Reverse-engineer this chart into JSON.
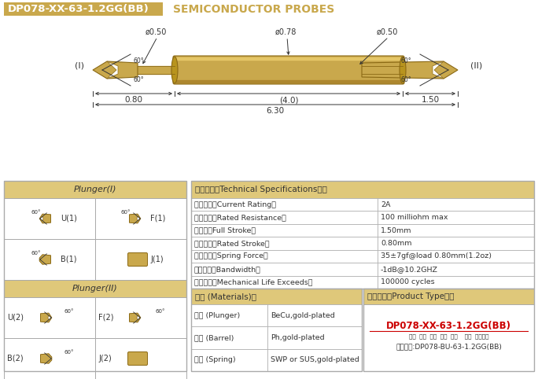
{
  "title_box_text": "DP078-XX-63-1.2GG(BB)",
  "title_right_text": "SEMICONDUCTOR PROBES",
  "gold_color": "#C9A84C",
  "light_gold_bg": "#DFC87A",
  "bg_color": "#FFFFFF",
  "specs": [
    [
      "额定电流（Current Rating）",
      "2A"
    ],
    [
      "额定电阻（Rated Resistance）",
      "100 milliohm max"
    ],
    [
      "满行程（Full Stroke）",
      "1.50mm"
    ],
    [
      "额定行程（Rated Stroke）",
      "0.80mm"
    ],
    [
      "额定弹力（Spring Force）",
      "35±7gf@load 0.80mm(1.2oz)"
    ],
    [
      "频率带宽（Bandwidth）",
      "-1dB@10.2GHZ"
    ],
    [
      "测试寿命（Mechanical Life Exceeds）",
      "100000 cycles"
    ]
  ],
  "materials": [
    [
      "针头 (Plunger)",
      "BeCu,gold-plated"
    ],
    [
      "针管 (Barrel)",
      "Ph,gold-plated"
    ],
    [
      "弹簧 (Spring)",
      "SWP or SUS,gold-plated"
    ]
  ],
  "product_type_label": "成品型号（Product Type）：",
  "product_type_value": "DP078-XX-63-1.2GG(BB)",
  "product_type_sub": "系列  规格  头型  总长  弹力    镀金  针头材质",
  "product_type_order": "订购举例:DP078-BU-63-1.2GG(BB)",
  "plunger1_label": "Plunger(I)",
  "plunger2_label": "Plunger(II)",
  "dim_phi050_left": "ø0.50",
  "dim_phi078": "ø0.78",
  "dim_phi050_right": "ø0.50",
  "dim_080": "0.80",
  "dim_40": "(4.0)",
  "dim_150": "1.50",
  "dim_630": "6.30",
  "label_I": "(I)",
  "label_II": "(II)",
  "specs_header": "技术要求（Technical Specifications）：",
  "materials_header": "材质 (Materials)："
}
